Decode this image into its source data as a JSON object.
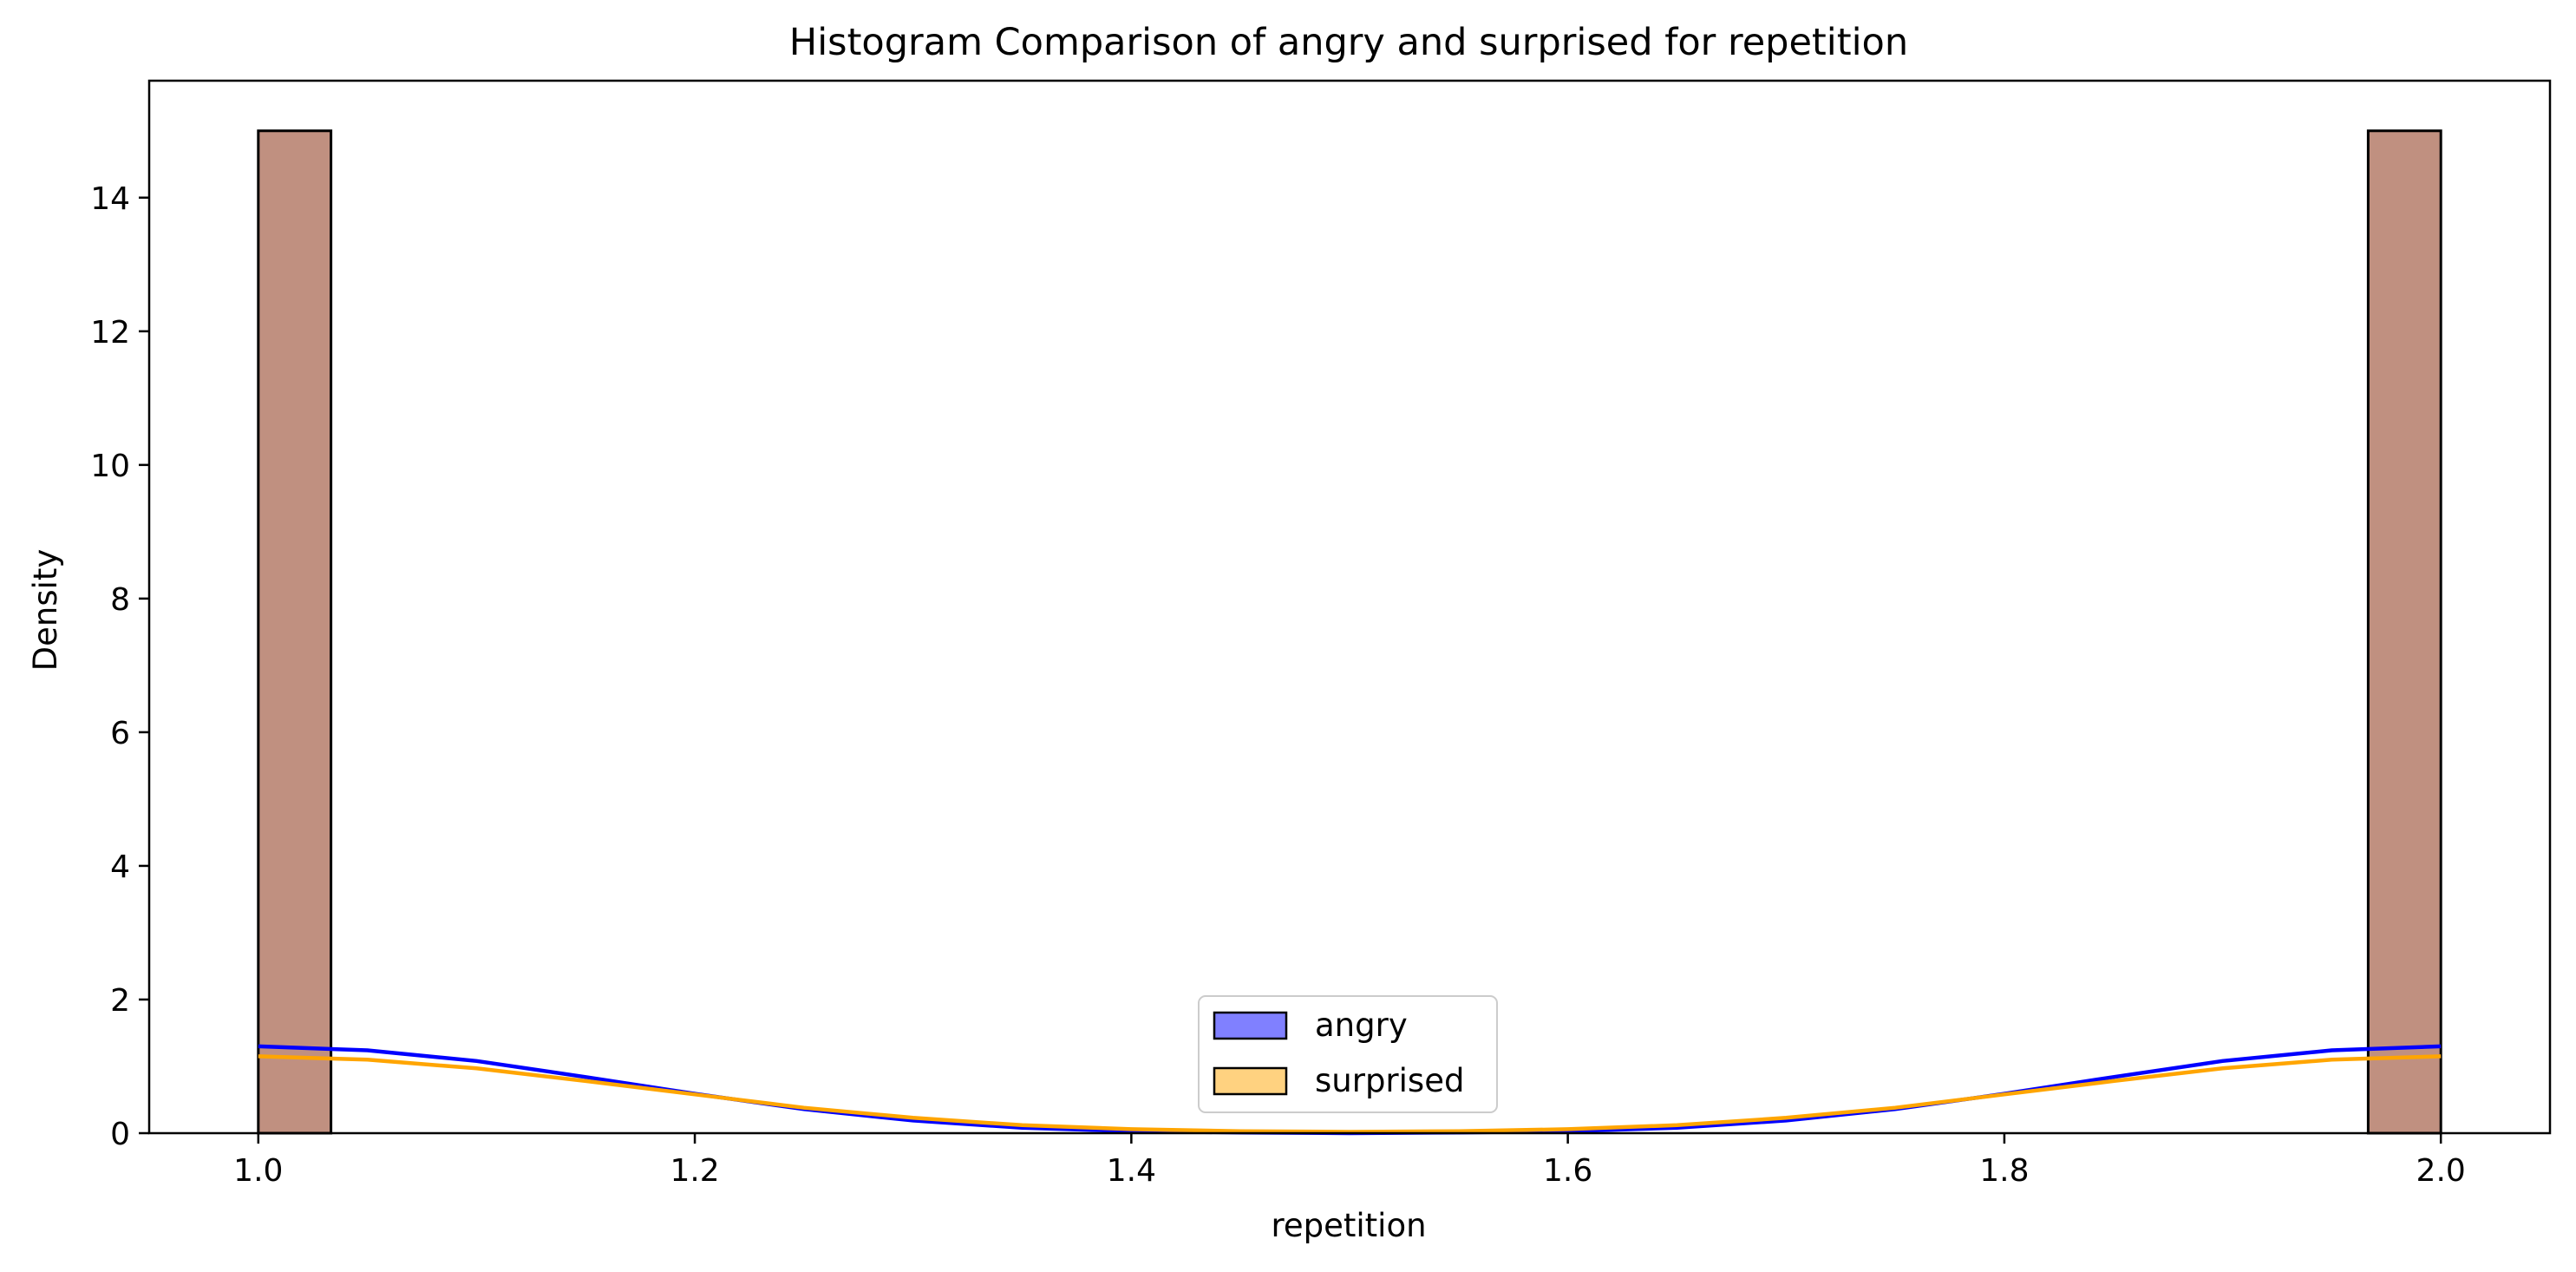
{
  "chart_data": {
    "type": "histogram",
    "title": "Histogram Comparison of angry and surprised for repetition",
    "xlabel": "repetition",
    "ylabel": "Density",
    "xlim": [
      0.95,
      2.05
    ],
    "ylim": [
      0,
      15.75
    ],
    "xticks": [
      "1.0",
      "1.2",
      "1.4",
      "1.6",
      "1.8",
      "2.0"
    ],
    "yticks": [
      "0",
      "2",
      "4",
      "6",
      "8",
      "10",
      "12",
      "14"
    ],
    "grid": false,
    "legend_position": "bottom-center",
    "bins": {
      "start": 1.0,
      "end": 2.0,
      "count": 30
    },
    "series": [
      {
        "name": "angry",
        "color": "#0000ff",
        "bars": [
          {
            "x0": 1.0,
            "x1": 1.0333,
            "density": 15.0
          },
          {
            "x0": 1.9667,
            "x1": 2.0,
            "density": 15.0
          }
        ],
        "kde": {
          "x": [
            1.0,
            1.05,
            1.1,
            1.15,
            1.2,
            1.25,
            1.3,
            1.35,
            1.4,
            1.45,
            1.5,
            1.55,
            1.6,
            1.65,
            1.7,
            1.75,
            1.8,
            1.85,
            1.9,
            1.95,
            2.0
          ],
          "y": [
            1.3,
            1.24,
            1.08,
            0.84,
            0.59,
            0.36,
            0.19,
            0.08,
            0.03,
            0.01,
            0.0,
            0.01,
            0.03,
            0.08,
            0.19,
            0.36,
            0.59,
            0.84,
            1.08,
            1.24,
            1.3
          ]
        }
      },
      {
        "name": "surprised",
        "color": "#ffa500",
        "bars": [
          {
            "x0": 1.0,
            "x1": 1.0333,
            "density": 15.0
          },
          {
            "x0": 1.9667,
            "x1": 2.0,
            "density": 15.0
          }
        ],
        "kde": {
          "x": [
            1.0,
            1.05,
            1.1,
            1.15,
            1.2,
            1.25,
            1.3,
            1.35,
            1.4,
            1.45,
            1.5,
            1.55,
            1.6,
            1.65,
            1.7,
            1.75,
            1.8,
            1.85,
            1.9,
            1.95,
            2.0
          ],
          "y": [
            1.15,
            1.1,
            0.97,
            0.78,
            0.58,
            0.38,
            0.23,
            0.12,
            0.06,
            0.03,
            0.02,
            0.03,
            0.06,
            0.12,
            0.23,
            0.38,
            0.58,
            0.78,
            0.97,
            1.1,
            1.15
          ]
        }
      }
    ]
  },
  "colors": {
    "angry_fill": "#8080ff",
    "surprised_fill": "#ffd280",
    "overlap_fill": "#c09080",
    "bar_edge": "#000000"
  }
}
